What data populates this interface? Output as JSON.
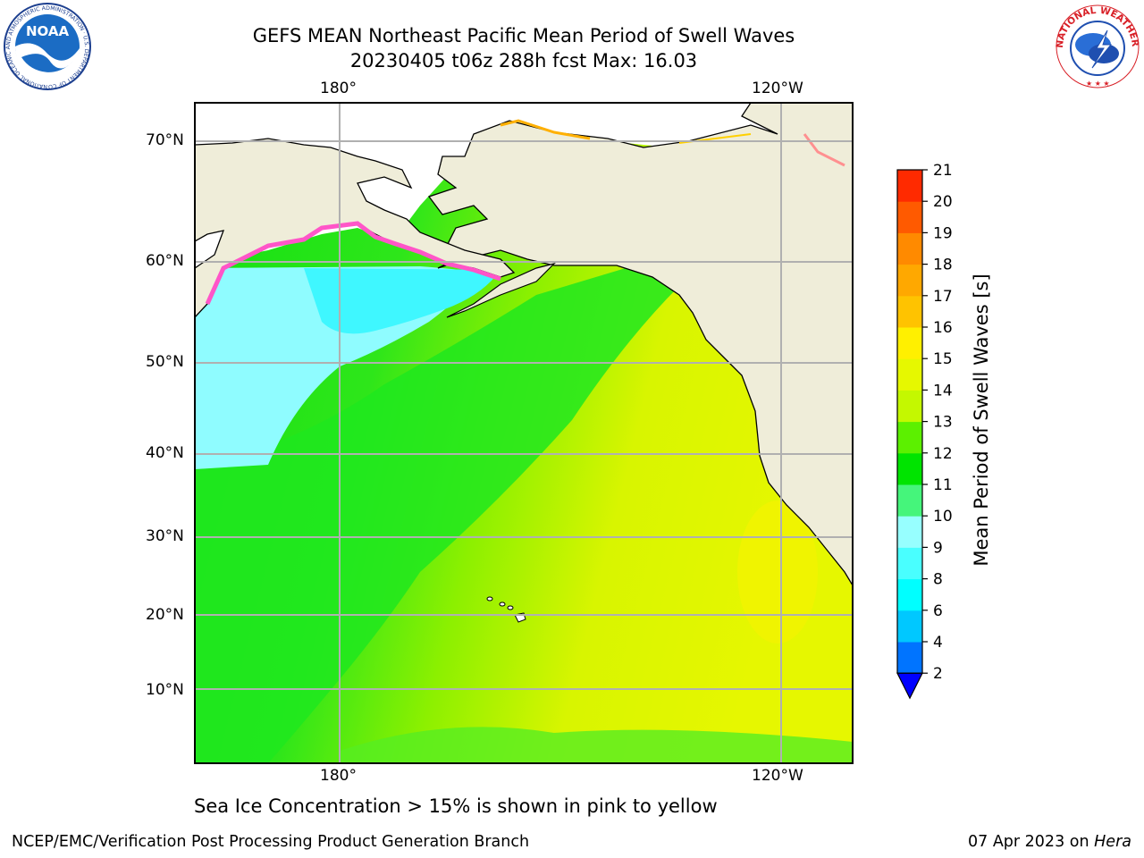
{
  "header": {
    "title_line1": "GEFS MEAN Northeast Pacific Mean Period of Swell Waves",
    "title_line2": "20230405 t06z 288h fcst   Max: 16.03"
  },
  "logos": {
    "noaa_text": "NOAA",
    "noaa_ring": "NATIONAL OCEANIC AND ATMOSPHERIC ADMINISTRATION · U.S. DEPARTMENT OF COMMERCE",
    "nws_ring": "NATIONAL WEATHER SERVICE"
  },
  "map": {
    "lon_labels_top": [
      "180°",
      "120°W"
    ],
    "lon_labels_bottom": [
      "180°",
      "120°W"
    ],
    "lat_labels": [
      "70°N",
      "60°N",
      "50°N",
      "40°N",
      "30°N",
      "20°N",
      "10°N"
    ],
    "colors": {
      "land": "#efedd9",
      "ocean_green": "#1ee81e",
      "ocean_yellow": "#d8f500",
      "ocean_cyan": "#8ffcff"
    }
  },
  "colorbar": {
    "label": "Mean Period of Swell Waves [s]",
    "ticks": [
      "2",
      "4",
      "6",
      "8",
      "9",
      "10",
      "11",
      "12",
      "13",
      "14",
      "15",
      "16",
      "17",
      "18",
      "19",
      "20",
      "21"
    ],
    "colors": [
      "#0074ff",
      "#00c8ff",
      "#00ffff",
      "#49ffff",
      "#97ffff",
      "#45f57b",
      "#00e400",
      "#5cf000",
      "#c4f800",
      "#e6f800",
      "#fff000",
      "#ffc300",
      "#ffa800",
      "#ff8a00",
      "#ff5a00",
      "#ff2a00",
      "#ff0000"
    ],
    "extend_color": "#0000ff"
  },
  "note": "Sea Ice Concentration > 15% is shown in pink to yellow",
  "footer": {
    "left": "NCEP/EMC/Verification Post Processing Product Generation Branch",
    "date": "07 Apr 2023 on ",
    "host": "Hera"
  }
}
